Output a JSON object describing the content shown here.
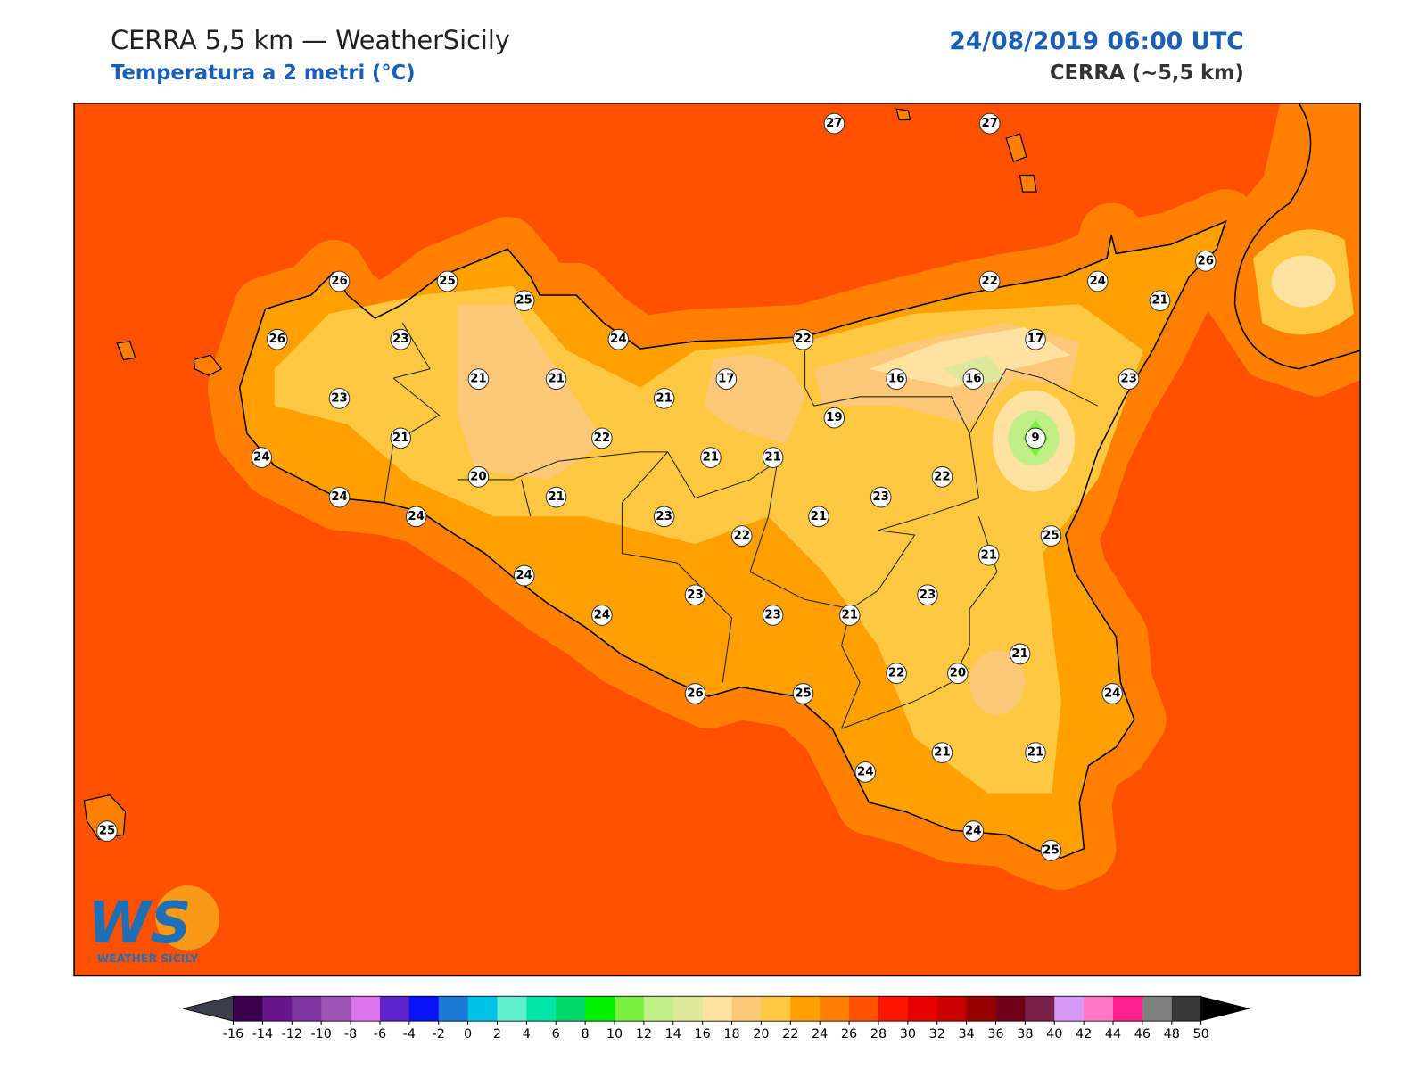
{
  "header": {
    "title": "CERRA 5,5 km — WeatherSicily",
    "subtitle": "Temperatura a 2 metri (°C)",
    "datetime": "24/08/2019 06:00 UTC",
    "model": "CERRA (~5,5 km)"
  },
  "stations": [
    27,
    27,
    26,
    25,
    25,
    26,
    23,
    24,
    22,
    22,
    24,
    26,
    21,
    17,
    23,
    21,
    21,
    17,
    16,
    16,
    23,
    21,
    19,
    21,
    22,
    9,
    24,
    21,
    21,
    20,
    22,
    24,
    21,
    23,
    24,
    23,
    21,
    22,
    25,
    21,
    24,
    23,
    23,
    24,
    23,
    21,
    21,
    22,
    20,
    26,
    25,
    24,
    24,
    21,
    21,
    24,
    25,
    25
  ],
  "colorbar": {
    "ticks": [
      -16,
      -14,
      -12,
      -10,
      -8,
      -6,
      -4,
      -2,
      0,
      2,
      4,
      6,
      8,
      10,
      12,
      14,
      16,
      18,
      20,
      22,
      24,
      26,
      28,
      30,
      32,
      34,
      36,
      38,
      40,
      42,
      44,
      46,
      48,
      50
    ],
    "colors": [
      "#3a0050",
      "#66158c",
      "#7f35a3",
      "#9e52b8",
      "#de74ec",
      "#5b23c9",
      "#0814f7",
      "#1b78d9",
      "#00c2e8",
      "#5ff0d0",
      "#00e6a8",
      "#00d86a",
      "#00f000",
      "#78f040",
      "#c2ee88",
      "#dde898",
      "#ffe2a0",
      "#fcc878",
      "#ffc840",
      "#ffa000",
      "#ff7f00",
      "#ff5000",
      "#ff1400",
      "#e80000",
      "#c80000",
      "#980000",
      "#700018",
      "#7a2048",
      "#d898f8",
      "#ff78c8",
      "#ff1f8f",
      "#808080",
      "#383838"
    ],
    "under_color": "#3c3c4c",
    "over_color": "#000000"
  },
  "logo": {
    "mark": "WS",
    "text": "WEATHER SICILY"
  }
}
